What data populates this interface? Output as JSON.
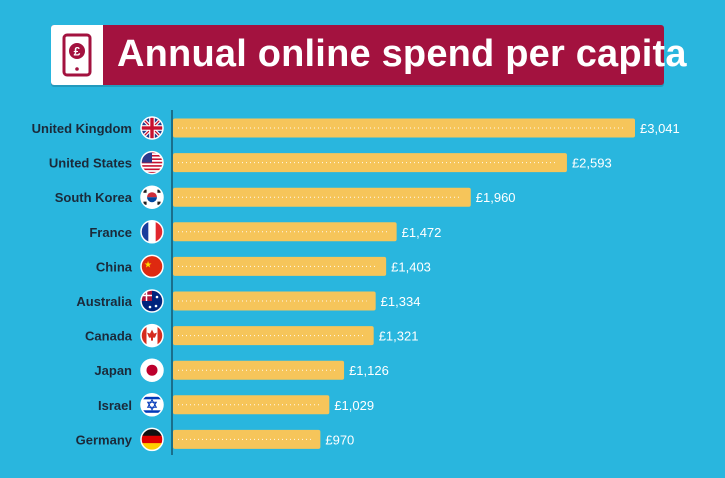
{
  "header": {
    "icon": "pound-tablet-icon"
  },
  "colors": {
    "background": "#29b6de",
    "banner": "#a3123f",
    "bar": "#f6c55a",
    "axis": "#1a6f8c",
    "label": "#1b2a3a",
    "value": "#ffffff"
  },
  "chart_data": {
    "type": "bar",
    "orientation": "horizontal",
    "title": "Annual online spend per capita",
    "categories": [
      "United Kingdom",
      "United States",
      "South Korea",
      "France",
      "China",
      "Australia",
      "Canada",
      "Japan",
      "Israel",
      "Germany"
    ],
    "values": [
      3041,
      2593,
      1960,
      1472,
      1403,
      1334,
      1321,
      1126,
      1029,
      970
    ],
    "value_labels": [
      "£3,041",
      "£2,593",
      "£1,960",
      "£1,472",
      "£1,403",
      "£1,334",
      "£1,321",
      "£1,126",
      "£1,029",
      "£970"
    ],
    "flags": [
      "uk-flag-icon",
      "us-flag-icon",
      "south-korea-flag-icon",
      "france-flag-icon",
      "china-flag-icon",
      "australia-flag-icon",
      "canada-flag-icon",
      "japan-flag-icon",
      "israel-flag-icon",
      "germany-flag-icon"
    ],
    "xlabel": "",
    "ylabel": "",
    "xlim": [
      0,
      3041
    ],
    "grid": false,
    "legend": "none"
  }
}
